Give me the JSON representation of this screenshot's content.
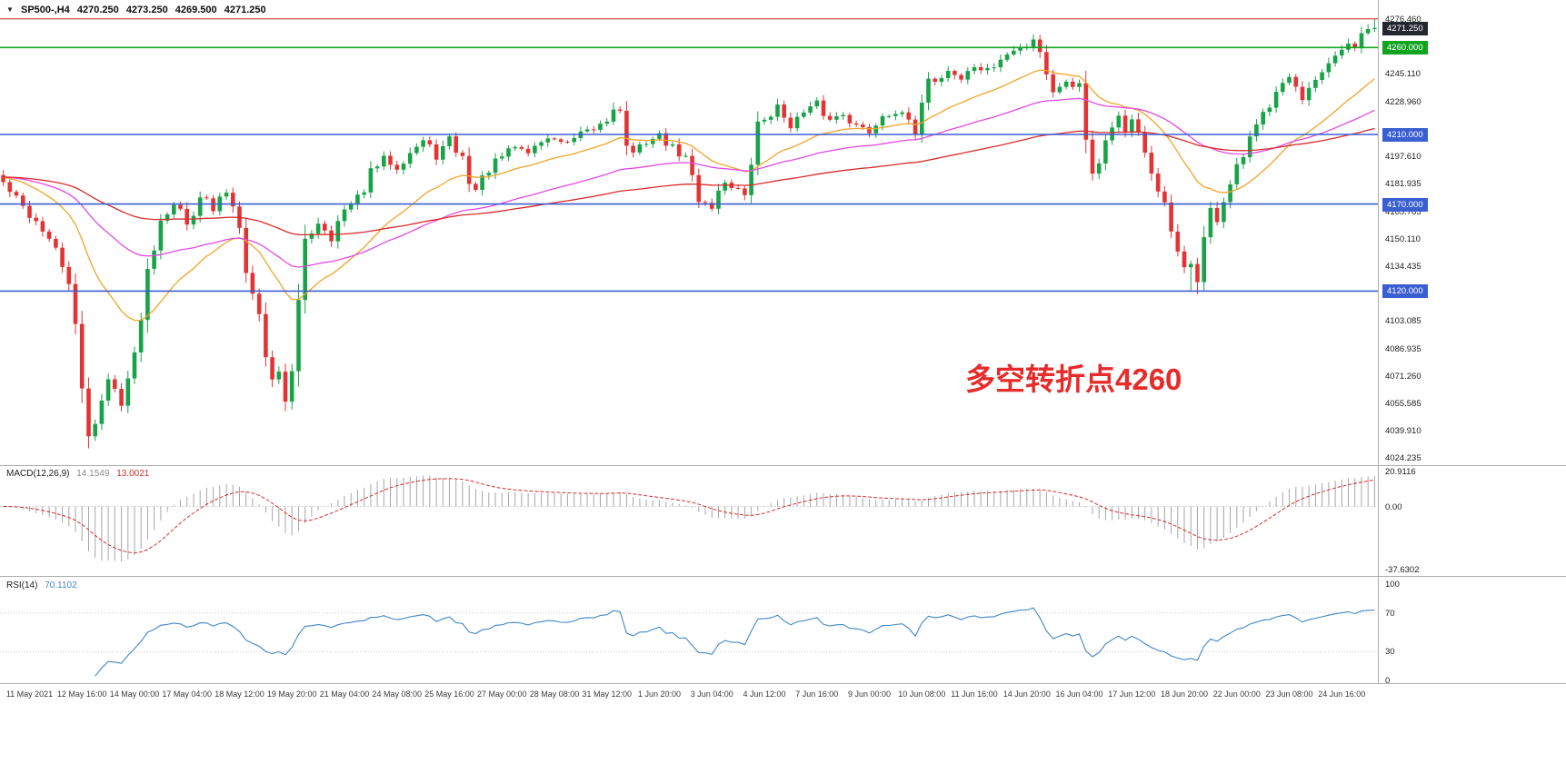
{
  "header": {
    "symbol": "SP500-,H4",
    "open": "4270.250",
    "high": "4273.250",
    "low": "4269.500",
    "close": "4271.250",
    "collapse_icon": "triangle-down-icon"
  },
  "chart_data": {
    "type": "candlestick",
    "symbol": "SP500-",
    "timeframe": "H4",
    "n_candles": 210,
    "candles_per_label": 8,
    "first_label_index": 4,
    "x_labels": [
      "11 May 2021",
      "12 May 16:00",
      "14 May 00:00",
      "17 May 04:00",
      "18 May 12:00",
      "19 May 20:00",
      "21 May 04:00",
      "24 May 08:00",
      "25 May 16:00",
      "27 May 00:00",
      "28 May 08:00",
      "31 May 12:00",
      "1 Jun 20:00",
      "3 Jun 04:00",
      "4 Jun 12:00",
      "7 Jun 16:00",
      "9 Jun 00:00",
      "10 Jun 08:00",
      "11 Jun 16:00",
      "14 Jun 20:00",
      "16 Jun 04:00",
      "17 Jun 12:00",
      "18 Jun 20:00",
      "22 Jun 00:00",
      "23 Jun 08:00",
      "24 Jun 16:00"
    ],
    "y_axis": {
      "price_min": 4022,
      "price_max": 4280,
      "ticks": [
        {
          "v": 4276.46,
          "label": "4276.460"
        },
        {
          "v": 4245.11,
          "label": "4245.110"
        },
        {
          "v": 4228.96,
          "label": "4228.960"
        },
        {
          "v": 4197.61,
          "label": "4197.610"
        },
        {
          "v": 4181.935,
          "label": "4181.935"
        },
        {
          "v": 4165.785,
          "label": "4165.785"
        },
        {
          "v": 4150.11,
          "label": "4150.110"
        },
        {
          "v": 4134.435,
          "label": "4134.435"
        },
        {
          "v": 4103.085,
          "label": "4103.085"
        },
        {
          "v": 4086.935,
          "label": "4086.935"
        },
        {
          "v": 4071.26,
          "label": "4071.260"
        },
        {
          "v": 4055.585,
          "label": "4055.585"
        },
        {
          "v": 4039.91,
          "label": "4039.910"
        },
        {
          "v": 4024.235,
          "label": "4024.235"
        }
      ]
    },
    "price_anchors": [
      [
        0,
        4182
      ],
      [
        3,
        4168
      ],
      [
        6,
        4156
      ],
      [
        8,
        4142
      ],
      [
        10,
        4126
      ],
      [
        11,
        4098
      ],
      [
        12,
        4062
      ],
      [
        13,
        4038
      ],
      [
        14,
        4046
      ],
      [
        16,
        4068
      ],
      [
        18,
        4058
      ],
      [
        20,
        4082
      ],
      [
        22,
        4132
      ],
      [
        24,
        4162
      ],
      [
        26,
        4172
      ],
      [
        28,
        4158
      ],
      [
        30,
        4176
      ],
      [
        32,
        4166
      ],
      [
        34,
        4178
      ],
      [
        36,
        4160
      ],
      [
        37,
        4134
      ],
      [
        38,
        4118
      ],
      [
        39,
        4106
      ],
      [
        40,
        4084
      ],
      [
        41,
        4068
      ],
      [
        42,
        4076
      ],
      [
        43,
        4058
      ],
      [
        44,
        4072
      ],
      [
        45,
        4112
      ],
      [
        46,
        4150
      ],
      [
        48,
        4160
      ],
      [
        50,
        4152
      ],
      [
        52,
        4166
      ],
      [
        54,
        4172
      ],
      [
        56,
        4188
      ],
      [
        58,
        4196
      ],
      [
        60,
        4192
      ],
      [
        62,
        4200
      ],
      [
        64,
        4206
      ],
      [
        66,
        4198
      ],
      [
        68,
        4206
      ],
      [
        70,
        4196
      ],
      [
        71,
        4184
      ],
      [
        72,
        4178
      ],
      [
        74,
        4190
      ],
      [
        76,
        4197
      ],
      [
        78,
        4203
      ],
      [
        80,
        4200
      ],
      [
        82,
        4206
      ],
      [
        84,
        4208
      ],
      [
        86,
        4204
      ],
      [
        88,
        4210
      ],
      [
        90,
        4213
      ],
      [
        92,
        4219
      ],
      [
        93,
        4227
      ],
      [
        94,
        4222
      ],
      [
        95,
        4205
      ],
      [
        96,
        4198
      ],
      [
        98,
        4206
      ],
      [
        100,
        4209
      ],
      [
        102,
        4202
      ],
      [
        104,
        4196
      ],
      [
        105,
        4185
      ],
      [
        106,
        4172
      ],
      [
        108,
        4170
      ],
      [
        110,
        4183
      ],
      [
        112,
        4178
      ],
      [
        113,
        4172
      ],
      [
        114,
        4194
      ],
      [
        115,
        4216
      ],
      [
        116,
        4219
      ],
      [
        118,
        4225
      ],
      [
        120,
        4216
      ],
      [
        122,
        4222
      ],
      [
        124,
        4227
      ],
      [
        126,
        4218
      ],
      [
        128,
        4223
      ],
      [
        130,
        4215
      ],
      [
        132,
        4212
      ],
      [
        134,
        4221
      ],
      [
        136,
        4223
      ],
      [
        138,
        4218
      ],
      [
        139,
        4206
      ],
      [
        140,
        4231
      ],
      [
        141,
        4244
      ],
      [
        142,
        4240
      ],
      [
        144,
        4247
      ],
      [
        146,
        4242
      ],
      [
        148,
        4249
      ],
      [
        150,
        4246
      ],
      [
        152,
        4253
      ],
      [
        154,
        4258
      ],
      [
        156,
        4262
      ],
      [
        157,
        4266
      ],
      [
        158,
        4259
      ],
      [
        159,
        4246
      ],
      [
        160,
        4233
      ],
      [
        161,
        4239
      ],
      [
        162,
        4243
      ],
      [
        163,
        4236
      ],
      [
        164,
        4241
      ],
      [
        165,
        4210
      ],
      [
        166,
        4189
      ],
      [
        167,
        4197
      ],
      [
        168,
        4206
      ],
      [
        169,
        4216
      ],
      [
        170,
        4221
      ],
      [
        171,
        4212
      ],
      [
        172,
        4217
      ],
      [
        173,
        4208
      ],
      [
        174,
        4197
      ],
      [
        175,
        4188
      ],
      [
        176,
        4180
      ],
      [
        177,
        4168
      ],
      [
        178,
        4154
      ],
      [
        179,
        4140
      ],
      [
        180,
        4131
      ],
      [
        181,
        4136
      ],
      [
        182,
        4128
      ],
      [
        183,
        4150
      ],
      [
        184,
        4166
      ],
      [
        185,
        4162
      ],
      [
        186,
        4172
      ],
      [
        187,
        4181
      ],
      [
        188,
        4189
      ],
      [
        189,
        4197
      ],
      [
        190,
        4206
      ],
      [
        191,
        4213
      ],
      [
        192,
        4221
      ],
      [
        193,
        4229
      ],
      [
        194,
        4237
      ],
      [
        195,
        4241
      ],
      [
        196,
        4243
      ],
      [
        197,
        4236
      ],
      [
        198,
        4228
      ],
      [
        199,
        4233
      ],
      [
        200,
        4239
      ],
      [
        201,
        4245
      ],
      [
        202,
        4249
      ],
      [
        203,
        4253
      ],
      [
        204,
        4258
      ],
      [
        205,
        4263
      ],
      [
        206,
        4260
      ],
      [
        207,
        4266
      ],
      [
        208,
        4270
      ],
      [
        209,
        4271.25
      ]
    ],
    "forced_lows": {
      "13": 4029.5,
      "43": 4051.0,
      "181": 4120.5,
      "182": 4118.2
    },
    "forced_highs": {
      "93": 4228.5,
      "157": 4267.5,
      "209": 4276.2
    },
    "candle_up_color": "#18a348",
    "candle_down_color": "#e23434",
    "levels": [
      {
        "price": 4276.5,
        "color": "#cc2222",
        "width": 1,
        "badge": null,
        "badge_bg": null
      },
      {
        "price": 4260.0,
        "color": "#11a41f",
        "width": 1.6,
        "badge": "4260.000",
        "badge_bg": "#11a41f"
      },
      {
        "price": 4210.0,
        "color": "#3a5fd0",
        "width": 1.6,
        "badge": "4210.000",
        "badge_bg": "#3a5fd0"
      },
      {
        "price": 4170.0,
        "color": "#3a5fd0",
        "width": 1.6,
        "badge": "4170.000",
        "badge_bg": "#3a5fd0"
      },
      {
        "price": 4120.0,
        "color": "#3a5fd0",
        "width": 1.6,
        "badge": "4120.000",
        "badge_bg": "#3a5fd0"
      }
    ],
    "current_price": {
      "value": 4271.25,
      "label": "4271.250",
      "badge_bg": "#24272e",
      "badge_fg": "#ffffff"
    },
    "moving_averages": [
      {
        "name": "ma-fast",
        "period": 21,
        "color": "#f0a428"
      },
      {
        "name": "ma-mid",
        "period": 55,
        "color": "#e24ae2"
      },
      {
        "name": "ma-slow",
        "period": 120,
        "color": "#d92b2b"
      }
    ],
    "indicators": {
      "macd": {
        "label": "MACD(12,26,9)",
        "value_main": "14.1549",
        "value_signal": "13.0021",
        "value_main_color": "#8a8a8a",
        "value_signal_color": "#cc3030",
        "fast": 12,
        "slow": 26,
        "signal": 9,
        "vmax": 22,
        "vmin": -40,
        "hist_color": "#a6a6a6",
        "signal_color": "#d03030",
        "axis": [
          {
            "v": 20.9116,
            "label": "20.9116"
          },
          {
            "v": 0,
            "label": "0.00"
          },
          {
            "v": -37.6302,
            "label": "-37.6302"
          }
        ]
      },
      "rsi": {
        "label": "RSI(14)",
        "period": 14,
        "value": "70.1102",
        "line_color": "#3f87c9",
        "level_lines": [
          70,
          30
        ],
        "axis": [
          {
            "v": 100,
            "label": "100"
          },
          {
            "v": 70,
            "label": "70"
          },
          {
            "v": 30,
            "label": "30"
          },
          {
            "v": 0,
            "label": "0"
          }
        ]
      }
    },
    "annotation": {
      "text": "多空转折点4260",
      "color": "#e62b2b"
    }
  }
}
